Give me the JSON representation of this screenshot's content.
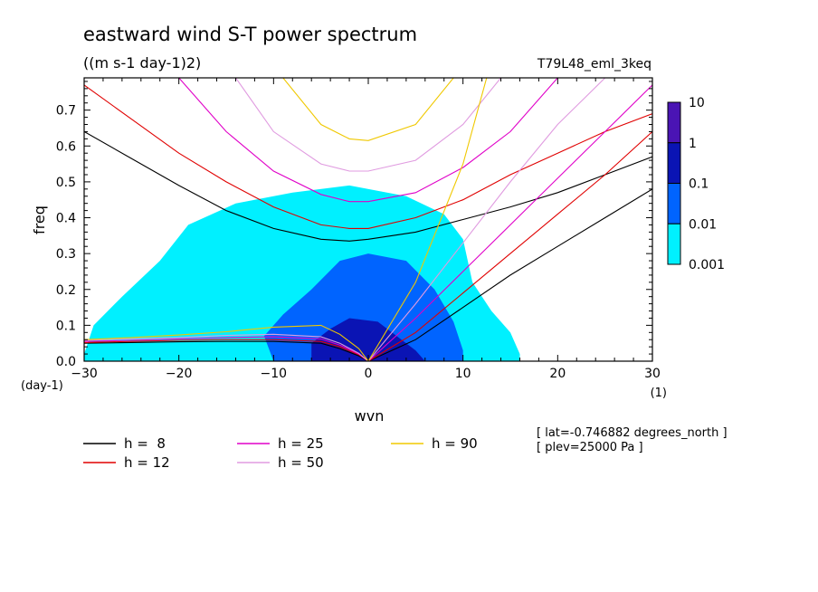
{
  "chart_data": {
    "type": "heatmap",
    "title": "eastward wind S-T power spectrum",
    "subtitle": "((m s-1 day-1)2)",
    "run_label": "T79L48_eml_3keq",
    "xlabel": "wvn",
    "ylabel": "freq",
    "x_unit": "(1)",
    "y_unit": "(day-1)",
    "xlim": [
      -30,
      30
    ],
    "ylim": [
      0,
      0.79
    ],
    "xticks": [
      -30,
      -20,
      -10,
      0,
      10,
      20,
      30
    ],
    "yticks": [
      0.0,
      0.1,
      0.2,
      0.3,
      0.4,
      0.5,
      0.6,
      0.7
    ],
    "ytick_labels": [
      "0.0",
      "0.1",
      "0.2",
      "0.3",
      "0.4",
      "0.5",
      "0.6",
      "0.7"
    ],
    "colorbar": {
      "levels": [
        "10",
        "1",
        "0.1",
        "0.01",
        "0.001"
      ],
      "colors": [
        "#4a14b4",
        "#0a14b4",
        "#0064ff",
        "#00f0ff"
      ]
    },
    "power_regions": [
      {
        "level": "0.001",
        "color": "#00f0ff",
        "points": [
          [
            -30,
            0.02
          ],
          [
            -29,
            0.1
          ],
          [
            -26,
            0.18
          ],
          [
            -22,
            0.28
          ],
          [
            -19,
            0.38
          ],
          [
            -14,
            0.44
          ],
          [
            -8,
            0.47
          ],
          [
            -2,
            0.49
          ],
          [
            4,
            0.46
          ],
          [
            8,
            0.41
          ],
          [
            10,
            0.34
          ],
          [
            11,
            0.22
          ],
          [
            13,
            0.14
          ],
          [
            15,
            0.08
          ],
          [
            16,
            0.02
          ],
          [
            16,
            0.0
          ],
          [
            -30,
            0.0
          ]
        ]
      },
      {
        "level": "0.01",
        "color": "#0064ff",
        "points": [
          [
            -10,
            0.0
          ],
          [
            -11,
            0.07
          ],
          [
            -9,
            0.13
          ],
          [
            -6,
            0.2
          ],
          [
            -3,
            0.28
          ],
          [
            0,
            0.3
          ],
          [
            4,
            0.28
          ],
          [
            7,
            0.2
          ],
          [
            9,
            0.11
          ],
          [
            10,
            0.03
          ],
          [
            10,
            0.0
          ]
        ]
      },
      {
        "level": "0.1",
        "color": "#0a14b4",
        "points": [
          [
            -6,
            0.0
          ],
          [
            -6,
            0.05
          ],
          [
            -4,
            0.09
          ],
          [
            -2,
            0.12
          ],
          [
            1,
            0.11
          ],
          [
            3,
            0.07
          ],
          [
            5,
            0.03
          ],
          [
            6,
            0.0
          ]
        ]
      }
    ],
    "contour_lines": [
      {
        "name": "h =  8",
        "color": "#000000",
        "curves": [
          {
            "x": [
              -30,
              -25,
              -20,
              -15,
              -10,
              -5,
              -2,
              0,
              5,
              10,
              15,
              20,
              25,
              30
            ],
            "y": [
              0.64,
              0.565,
              0.49,
              0.42,
              0.37,
              0.34,
              0.335,
              0.34,
              0.36,
              0.395,
              0.43,
              0.47,
              0.52,
              0.57
            ]
          },
          {
            "x": [
              -30,
              -25,
              -20,
              -15,
              -10,
              -5,
              -3,
              -1,
              0
            ],
            "y": [
              0.05,
              0.052,
              0.054,
              0.055,
              0.055,
              0.05,
              0.035,
              0.015,
              0.0
            ]
          },
          {
            "x": [
              0,
              5,
              10,
              15,
              20,
              25,
              30
            ],
            "y": [
              0.0,
              0.06,
              0.15,
              0.24,
              0.32,
              0.4,
              0.48
            ]
          }
        ]
      },
      {
        "name": "h = 12",
        "color": "#e00000",
        "curves": [
          {
            "x": [
              -30,
              -25,
              -20,
              -15,
              -10,
              -5,
              -2,
              0,
              5,
              10,
              15,
              20,
              25,
              30
            ],
            "y": [
              0.77,
              0.675,
              0.58,
              0.5,
              0.43,
              0.38,
              0.37,
              0.37,
              0.4,
              0.45,
              0.52,
              0.58,
              0.64,
              0.69
            ]
          },
          {
            "x": [
              -30,
              -25,
              -20,
              -15,
              -10,
              -5,
              -3,
              -1,
              0
            ],
            "y": [
              0.052,
              0.055,
              0.058,
              0.06,
              0.06,
              0.055,
              0.04,
              0.018,
              0.0
            ]
          },
          {
            "x": [
              0,
              5,
              10,
              15,
              20,
              25,
              30
            ],
            "y": [
              0.0,
              0.08,
              0.19,
              0.3,
              0.41,
              0.52,
              0.64
            ]
          }
        ]
      },
      {
        "name": "h = 25",
        "color": "#e000c8",
        "curves": [
          {
            "x": [
              -20,
              -15,
              -10,
              -5,
              -2,
              0,
              5,
              10,
              15,
              20
            ],
            "y": [
              0.79,
              0.64,
              0.53,
              0.465,
              0.445,
              0.445,
              0.47,
              0.54,
              0.64,
              0.79
            ]
          },
          {
            "x": [
              -30,
              -25,
              -20,
              -15,
              -10,
              -5,
              -3,
              -1,
              0
            ],
            "y": [
              0.055,
              0.058,
              0.062,
              0.066,
              0.068,
              0.062,
              0.045,
              0.02,
              0.0
            ]
          },
          {
            "x": [
              0,
              5,
              10,
              15,
              20,
              25,
              30
            ],
            "y": [
              0.0,
              0.12,
              0.25,
              0.38,
              0.51,
              0.64,
              0.77
            ]
          }
        ]
      },
      {
        "name": "h = 50",
        "color": "#e09be0",
        "curves": [
          {
            "x": [
              -14,
              -10,
              -5,
              -2,
              0,
              5,
              10,
              14
            ],
            "y": [
              0.79,
              0.64,
              0.55,
              0.53,
              0.53,
              0.56,
              0.66,
              0.79
            ]
          },
          {
            "x": [
              -30,
              -25,
              -20,
              -15,
              -10,
              -5,
              -3,
              -1,
              0
            ],
            "y": [
              0.058,
              0.062,
              0.066,
              0.072,
              0.075,
              0.068,
              0.05,
              0.022,
              0.0
            ]
          },
          {
            "x": [
              0,
              5,
              10,
              15,
              20,
              25
            ],
            "y": [
              0.0,
              0.16,
              0.33,
              0.5,
              0.66,
              0.79
            ]
          }
        ]
      },
      {
        "name": "h = 90",
        "color": "#f0c800",
        "curves": [
          {
            "x": [
              -9,
              -5,
              -2,
              0,
              5,
              9
            ],
            "y": [
              0.79,
              0.66,
              0.62,
              0.615,
              0.66,
              0.79
            ]
          },
          {
            "x": [
              -30,
              -25,
              -20,
              -15,
              -10,
              -5,
              -3,
              -1,
              0
            ],
            "y": [
              0.06,
              0.066,
              0.073,
              0.082,
              0.095,
              0.1,
              0.075,
              0.035,
              0.0
            ]
          },
          {
            "x": [
              0,
              5,
              10,
              12.5
            ],
            "y": [
              0.0,
              0.22,
              0.55,
              0.79
            ]
          }
        ]
      }
    ]
  },
  "legend": [
    {
      "label": "h =  8",
      "color": "#000000"
    },
    {
      "label": "h = 12",
      "color": "#e00000"
    },
    {
      "label": "h = 25",
      "color": "#e000c8"
    },
    {
      "label": "h = 50",
      "color": "#e09be0"
    },
    {
      "label": "h = 90",
      "color": "#f0c800"
    }
  ],
  "info": {
    "line1": "[ lat=-0.746882 degrees_north ]",
    "line2": "[ plev=25000 Pa ]"
  }
}
